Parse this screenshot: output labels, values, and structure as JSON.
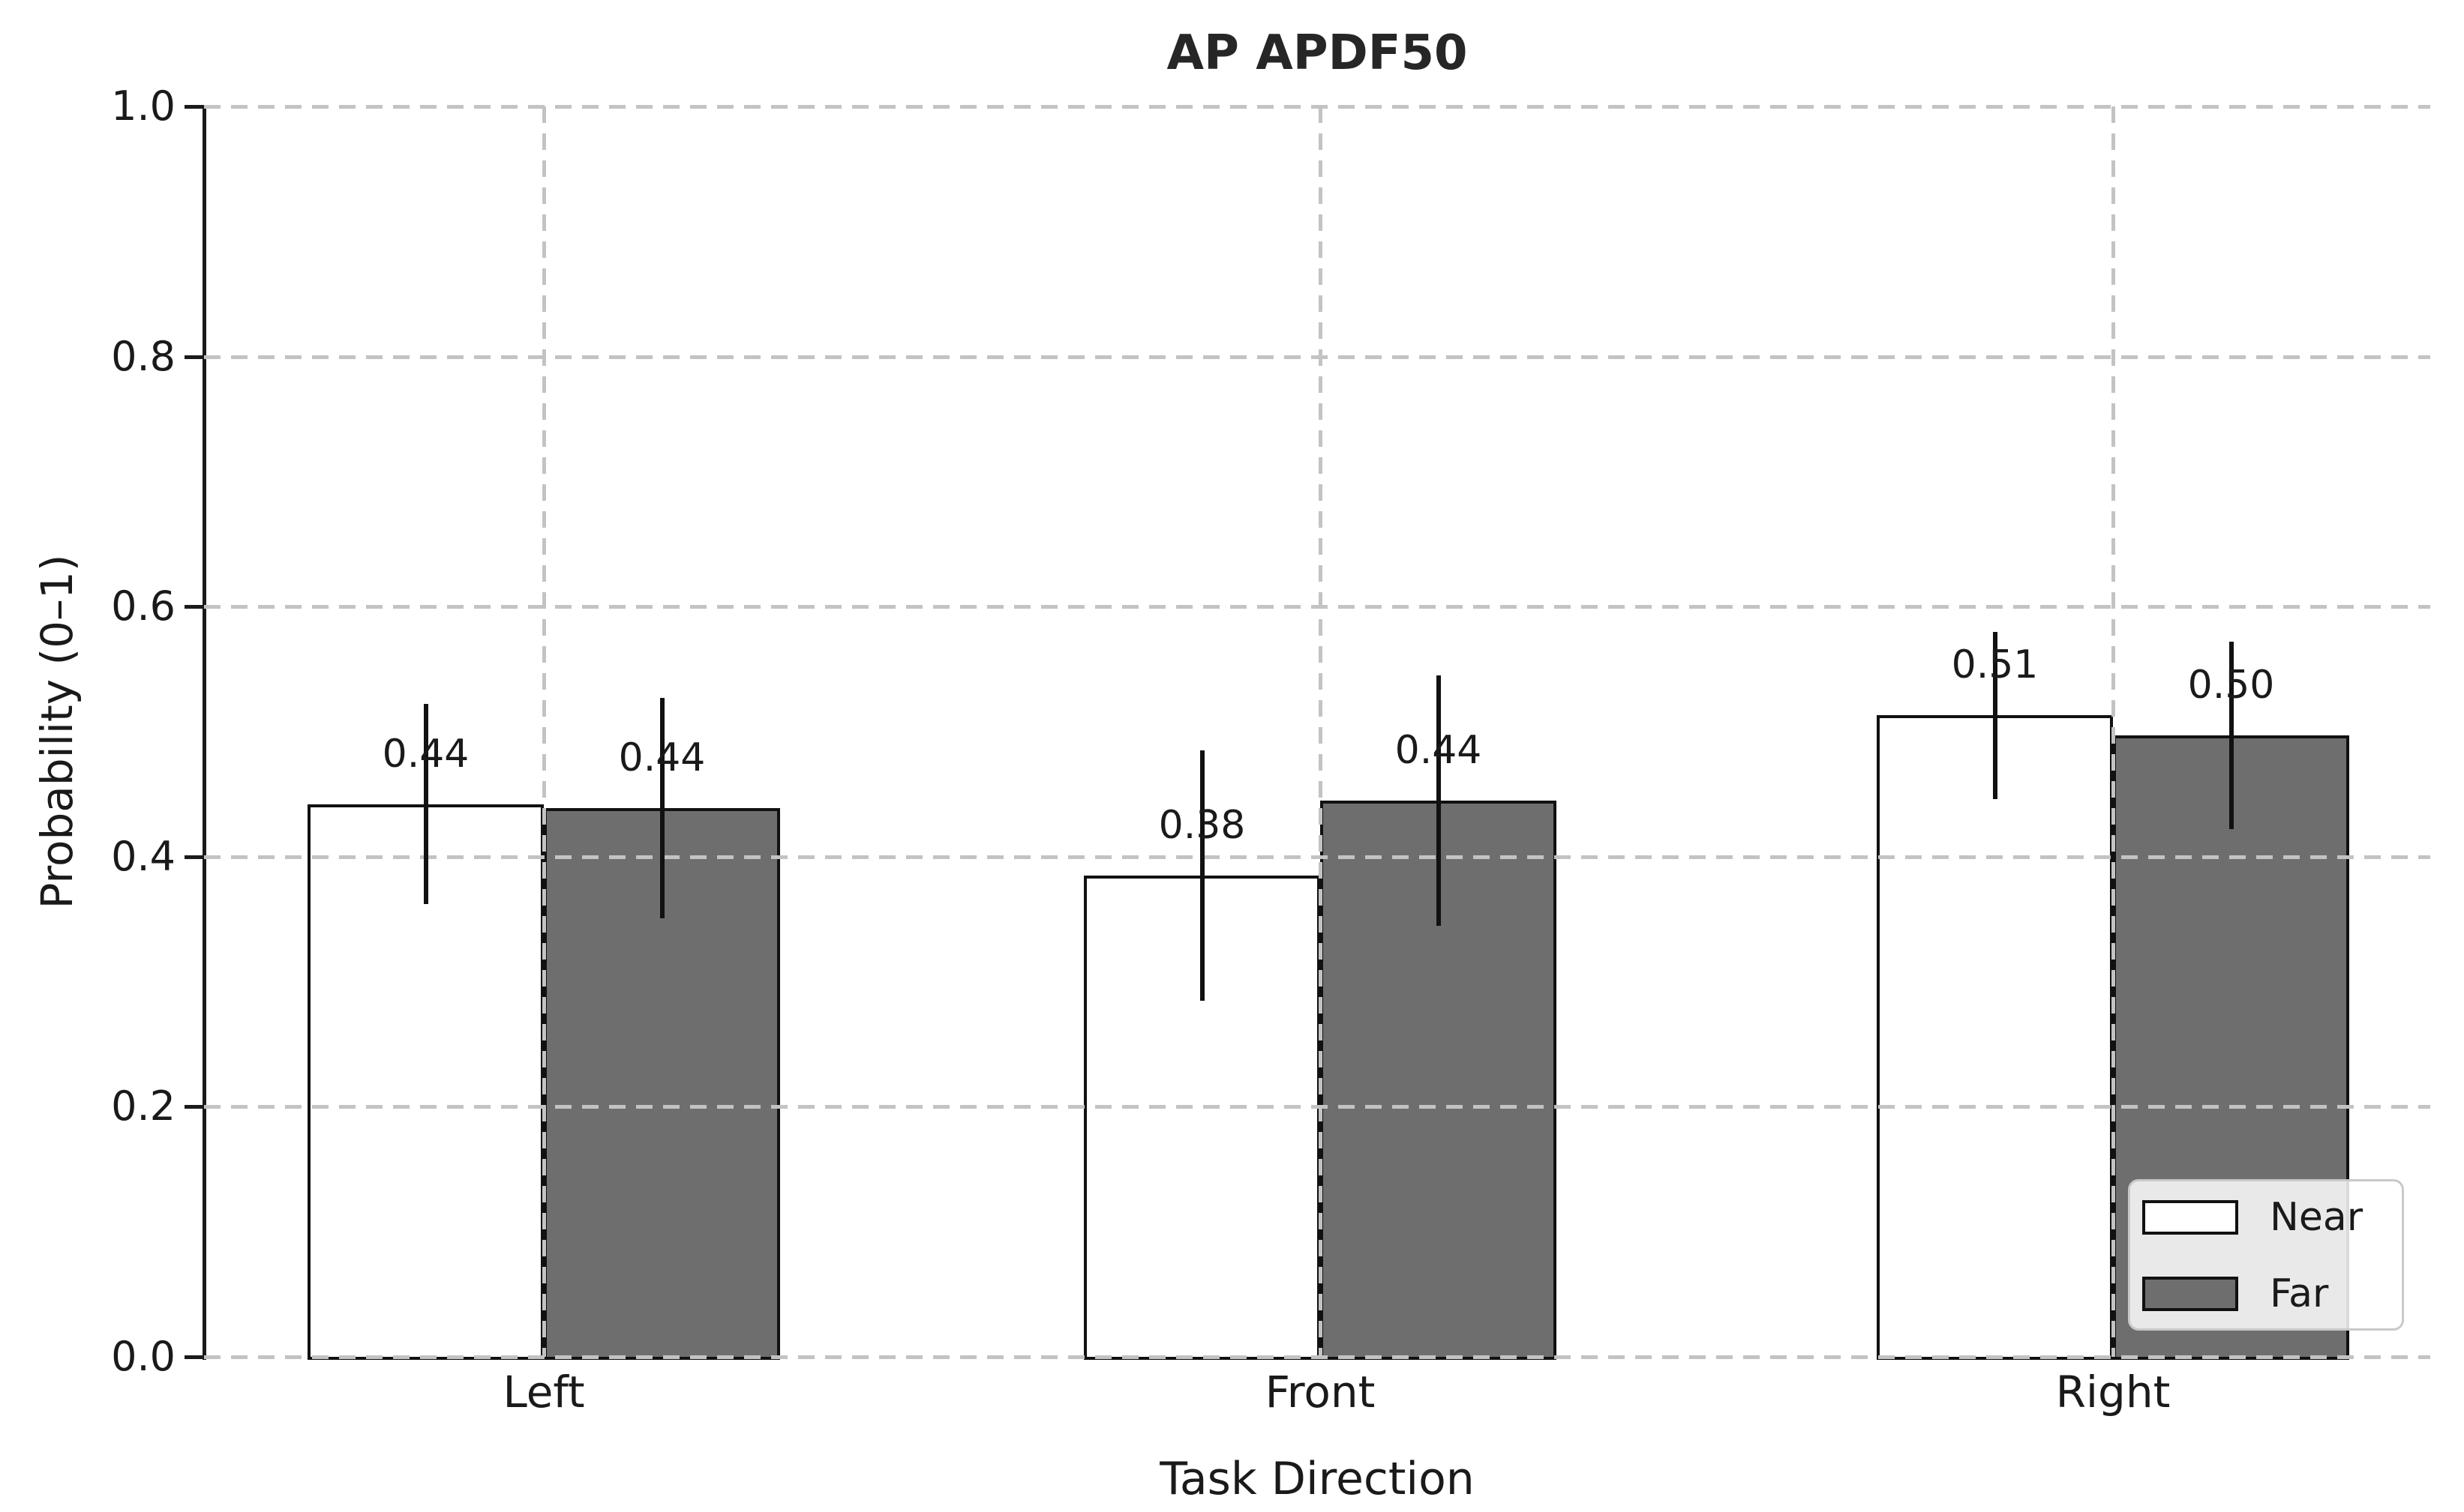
{
  "figure": {
    "title": "AP APDF50"
  },
  "chart_data": {
    "type": "bar",
    "title": "AP APDF50",
    "xlabel": "Task Direction",
    "ylabel": "Probability (0–1)",
    "categories": [
      "Left",
      "Front",
      "Right"
    ],
    "series": [
      {
        "name": "Near",
        "values": [
          0.442,
          0.385,
          0.513
        ],
        "data_labels": [
          "0.44",
          "0.38",
          "0.51"
        ],
        "errors": [
          0.08,
          0.1,
          0.067
        ],
        "fill": "#ffffff"
      },
      {
        "name": "Far",
        "values": [
          0.439,
          0.445,
          0.497
        ],
        "data_labels": [
          "0.44",
          "0.44",
          "0.50"
        ],
        "errors": [
          0.088,
          0.1,
          0.075
        ],
        "fill": "#6e6e6e"
      }
    ],
    "ylim": [
      0.0,
      1.0
    ],
    "yticks": [
      "0.0",
      "0.2",
      "0.4",
      "0.6",
      "0.8",
      "1.0"
    ],
    "ytick_values": [
      0.0,
      0.2,
      0.4,
      0.6,
      0.8,
      1.0
    ],
    "grid": true,
    "grid_style": "dashed",
    "legend_position": "lower right",
    "legend_entries": [
      "Near",
      "Far"
    ]
  },
  "colors": {
    "near_fill": "#ffffff",
    "far_fill": "#6e6e6e",
    "bar_edge": "#111111",
    "grid": "#c3c3c3",
    "axis": "#1a1a1a",
    "legend_border": "#c9c9c9",
    "title_text": "#262626"
  }
}
